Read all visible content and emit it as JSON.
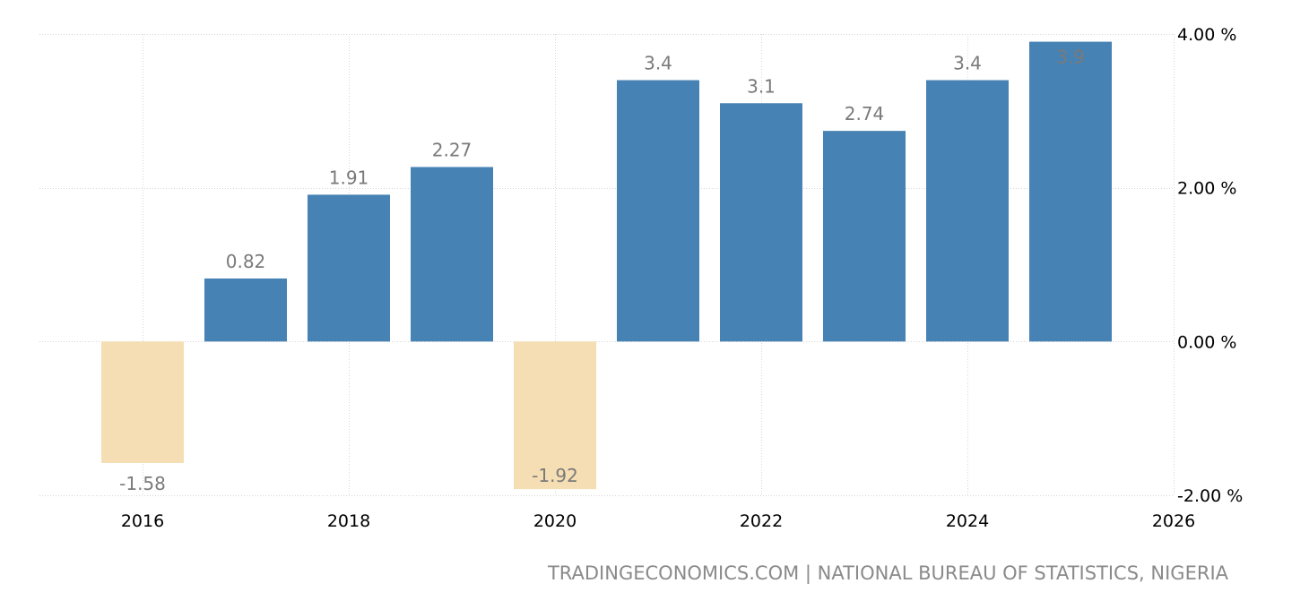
{
  "chart_data": {
    "type": "bar",
    "categories": [
      "2016",
      "2017",
      "2018",
      "2019",
      "2020",
      "2021",
      "2022",
      "2023",
      "2024",
      "2025"
    ],
    "values": [
      -1.58,
      0.82,
      1.91,
      2.27,
      -1.92,
      3.4,
      3.1,
      2.74,
      3.4,
      3.9
    ],
    "value_labels": [
      "-1.58",
      "0.82",
      "1.91",
      "2.27",
      "-1.92",
      "3.4",
      "3.1",
      "2.74",
      "3.4",
      "3.9"
    ],
    "x_tick_labels": [
      "2016",
      "2018",
      "2020",
      "2022",
      "2024",
      "2026"
    ],
    "x_tick_values": [
      2016,
      2018,
      2020,
      2022,
      2024,
      2026
    ],
    "y_tick_labels": [
      "4.00 %",
      "2.00 %",
      "0.00 %",
      "-2.00 %"
    ],
    "y_tick_values": [
      4,
      2,
      0,
      -2
    ],
    "ylim": [
      -2,
      4
    ],
    "xlim": [
      2015.5,
      2026.5
    ],
    "y_axis_side": "right",
    "grid": true,
    "colors": {
      "positive": "#4682b4",
      "negative": "#f5deb3",
      "grid": "#d6d6d6",
      "data_label": "#7a7a7a"
    }
  },
  "footer": {
    "source": "TRADINGECONOMICS.COM | NATIONAL BUREAU OF STATISTICS, NIGERIA"
  }
}
